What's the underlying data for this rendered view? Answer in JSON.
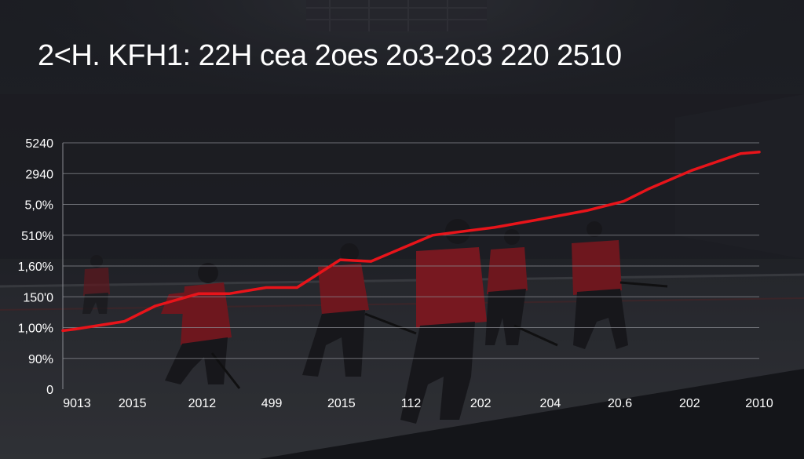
{
  "chart_data": {
    "type": "line",
    "title": "2<H. KFH1: 22H cea 2oes 2o3-2o3 220 2510",
    "xlabel": "",
    "ylabel": "",
    "x_ticks": [
      "9013",
      "2015",
      "2012",
      "499",
      "2015",
      "112",
      "202",
      "204",
      "20.6",
      "202",
      "2010"
    ],
    "y_ticks": [
      "0",
      "90%",
      "1,00%",
      "150'0",
      "1,60%",
      "510%",
      "5,0%",
      "2940",
      "5240"
    ],
    "grid": true,
    "legend": "none",
    "series": [
      {
        "color": "#e8141a",
        "points": [
          {
            "x": 0.0,
            "y": 1.9
          },
          {
            "x": 0.2,
            "y": 1.95
          },
          {
            "x": 1.0,
            "y": 2.2
          },
          {
            "x": 1.5,
            "y": 2.7
          },
          {
            "x": 2.2,
            "y": 3.1
          },
          {
            "x": 2.7,
            "y": 3.1
          },
          {
            "x": 3.3,
            "y": 3.3
          },
          {
            "x": 3.8,
            "y": 3.3
          },
          {
            "x": 4.5,
            "y": 4.2
          },
          {
            "x": 5.0,
            "y": 4.15
          },
          {
            "x": 6.0,
            "y": 5.0
          },
          {
            "x": 7.0,
            "y": 5.25
          },
          {
            "x": 7.7,
            "y": 5.5
          },
          {
            "x": 8.5,
            "y": 5.8
          },
          {
            "x": 9.1,
            "y": 6.1
          },
          {
            "x": 9.5,
            "y": 6.5
          },
          {
            "x": 10.2,
            "y": 7.1
          },
          {
            "x": 11.0,
            "y": 7.65
          },
          {
            "x": 11.3,
            "y": 7.7
          }
        ]
      }
    ]
  },
  "colors": {
    "line": "#e8141a",
    "grid": "#8a8c92",
    "text": "#ffffff",
    "jersey": "#b01a24"
  }
}
